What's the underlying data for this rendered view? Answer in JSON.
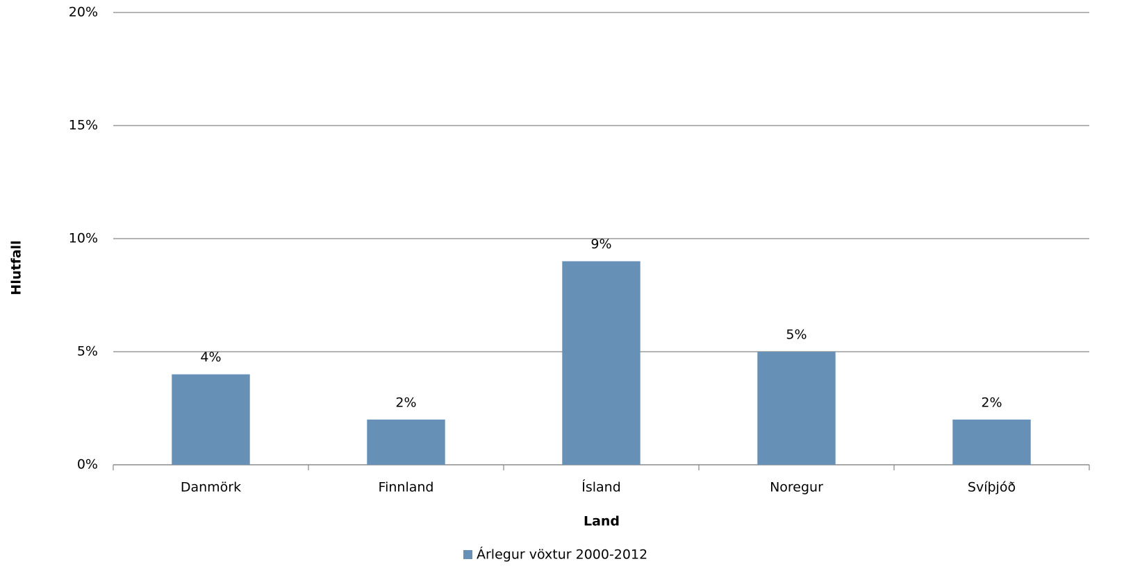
{
  "chart_data": {
    "type": "bar",
    "x_label": "Land",
    "y_label": "Hlutfall",
    "categories": [
      "Danmörk",
      "Finnland",
      "Ísland",
      "Noregur",
      "Svíþjóð"
    ],
    "series": [
      {
        "name": "Árlegur vöxtur 2000-2012",
        "color": "#6690b6",
        "values": [
          4,
          2,
          9,
          5,
          2
        ],
        "value_labels": [
          "4%",
          "2%",
          "9%",
          "5%",
          "2%"
        ]
      }
    ],
    "ylim": [
      0,
      20
    ],
    "yticks": [
      {
        "value": 0,
        "label": "0%"
      },
      {
        "value": 5,
        "label": "5%"
      },
      {
        "value": 10,
        "label": "10%"
      },
      {
        "value": 15,
        "label": "15%"
      },
      {
        "value": 20,
        "label": "20%"
      }
    ],
    "grid": true,
    "legend": "bottom"
  }
}
